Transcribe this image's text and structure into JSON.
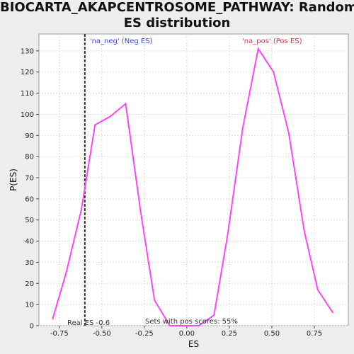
{
  "chart_data": {
    "type": "line",
    "title": "BIOCARTA_AKAPCENTROSOME_PATHWAY: Random ES distribution",
    "title_lines": [
      "BIOCARTA_AKAPCENTROSOME_PATHWAY: Random",
      "ES distribution"
    ],
    "xlabel": "ES",
    "ylabel": "P(ES)",
    "xlim": [
      -0.87,
      0.95
    ],
    "ylim": [
      0,
      138
    ],
    "x_ticks": [
      -0.75,
      -0.5,
      -0.25,
      0,
      0.25,
      0.5,
      0.75
    ],
    "x_tick_labels": [
      "-0.75",
      "-0.50",
      "-0.25",
      "0.00",
      "0.25",
      "0.50",
      "0.75"
    ],
    "y_ticks": [
      0,
      10,
      20,
      30,
      40,
      50,
      60,
      70,
      80,
      90,
      100,
      110,
      120,
      130
    ],
    "y_tick_labels": [
      "0",
      "10",
      "20",
      "30",
      "40",
      "50",
      "60",
      "70",
      "80",
      "90",
      "100",
      "110",
      "120",
      "130"
    ],
    "grid": true,
    "series": [
      {
        "color": "#ff44ff",
        "x": [
          -0.79,
          -0.71,
          -0.62,
          -0.54,
          -0.45,
          -0.36,
          -0.27,
          -0.19,
          -0.1,
          -0.02,
          0.07,
          0.16,
          0.24,
          0.33,
          0.42,
          0.51,
          0.6,
          0.69,
          0.77,
          0.86
        ],
        "y": [
          3,
          25,
          55,
          95,
          99,
          105,
          53,
          12,
          0,
          0,
          0,
          5,
          43,
          94,
          131,
          120,
          91,
          45,
          17,
          6
        ]
      }
    ],
    "real_es": -0.6,
    "annotations": {
      "neg": "'na_neg' (Neg ES)",
      "pos": "'na_pos' (Pos ES)",
      "real_es": "Real ES -0.6",
      "pos_scores": "Sets with pos scores: 55%"
    },
    "colors": {
      "neg": "#4444cc",
      "pos": "#dd3344",
      "line": "#ff44ff",
      "background": "#eeeeee",
      "plot_bg": "#ffffff"
    }
  }
}
